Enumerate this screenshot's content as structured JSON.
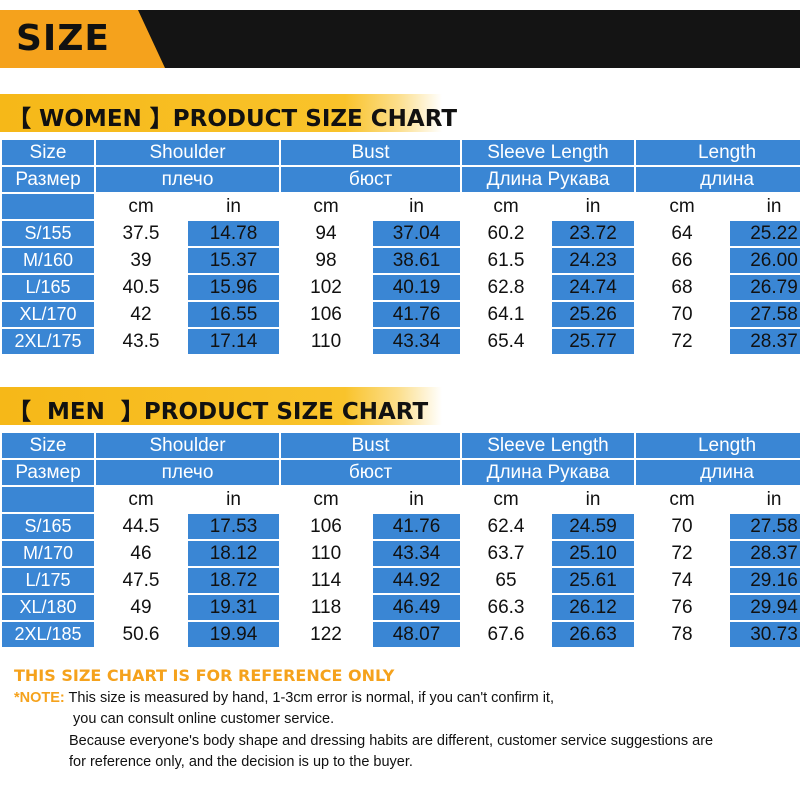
{
  "banner": {
    "title": "SIZE"
  },
  "colors": {
    "accent": "#f5a21c",
    "table_blue": "#3a86d4",
    "banner_dark": "#141414"
  },
  "women": {
    "section_title": "【 WOMEN 】PRODUCT SIZE CHART",
    "header_en": [
      "Size",
      "Shoulder",
      "Bust",
      "Sleeve Length",
      "Length"
    ],
    "header_ru": [
      "Размер",
      "плечо",
      "бюст",
      "Длина Рукава",
      "длина"
    ],
    "units": [
      "cm",
      "in",
      "cm",
      "in",
      "cm",
      "in",
      "cm",
      "in"
    ],
    "rows": [
      [
        "S/155",
        "37.5",
        "14.78",
        "94",
        "37.04",
        "60.2",
        "23.72",
        "64",
        "25.22"
      ],
      [
        "M/160",
        "39",
        "15.37",
        "98",
        "38.61",
        "61.5",
        "24.23",
        "66",
        "26.00"
      ],
      [
        "L/165",
        "40.5",
        "15.96",
        "102",
        "40.19",
        "62.8",
        "24.74",
        "68",
        "26.79"
      ],
      [
        "XL/170",
        "42",
        "16.55",
        "106",
        "41.76",
        "64.1",
        "25.26",
        "70",
        "27.58"
      ],
      [
        "2XL/175",
        "43.5",
        "17.14",
        "110",
        "43.34",
        "65.4",
        "25.77",
        "72",
        "28.37"
      ]
    ]
  },
  "men": {
    "section_title": "【  MEN  】PRODUCT SIZE CHART",
    "header_en": [
      "Size",
      "Shoulder",
      "Bust",
      "Sleeve Length",
      "Length"
    ],
    "header_ru": [
      "Размер",
      "плечо",
      "бюст",
      "Длина Рукава",
      "длина"
    ],
    "units": [
      "cm",
      "in",
      "cm",
      "in",
      "cm",
      "in",
      "cm",
      "in"
    ],
    "rows": [
      [
        "S/165",
        "44.5",
        "17.53",
        "106",
        "41.76",
        "62.4",
        "24.59",
        "70",
        "27.58"
      ],
      [
        "M/170",
        "46",
        "18.12",
        "110",
        "43.34",
        "63.7",
        "25.10",
        "72",
        "28.37"
      ],
      [
        "L/175",
        "47.5",
        "18.72",
        "114",
        "44.92",
        "65",
        "25.61",
        "74",
        "29.16"
      ],
      [
        "XL/180",
        "49",
        "19.31",
        "118",
        "46.49",
        "66.3",
        "26.12",
        "76",
        "29.94"
      ],
      [
        "2XL/185",
        "50.6",
        "19.94",
        "122",
        "48.07",
        "67.6",
        "26.63",
        "78",
        "30.73"
      ]
    ]
  },
  "footer": {
    "reference_title": "THIS SIZE CHART IS FOR REFERENCE ONLY",
    "note_label": "*NOTE:",
    "note_line1": " This size is measured by hand, 1-3cm error is normal, if you can't confirm it,",
    "note_line2": "you can consult online customer service.",
    "note_line3": "Because everyone's body shape and dressing habits are different, customer service suggestions are",
    "note_line4": "for reference only, and the decision is up to the buyer."
  }
}
